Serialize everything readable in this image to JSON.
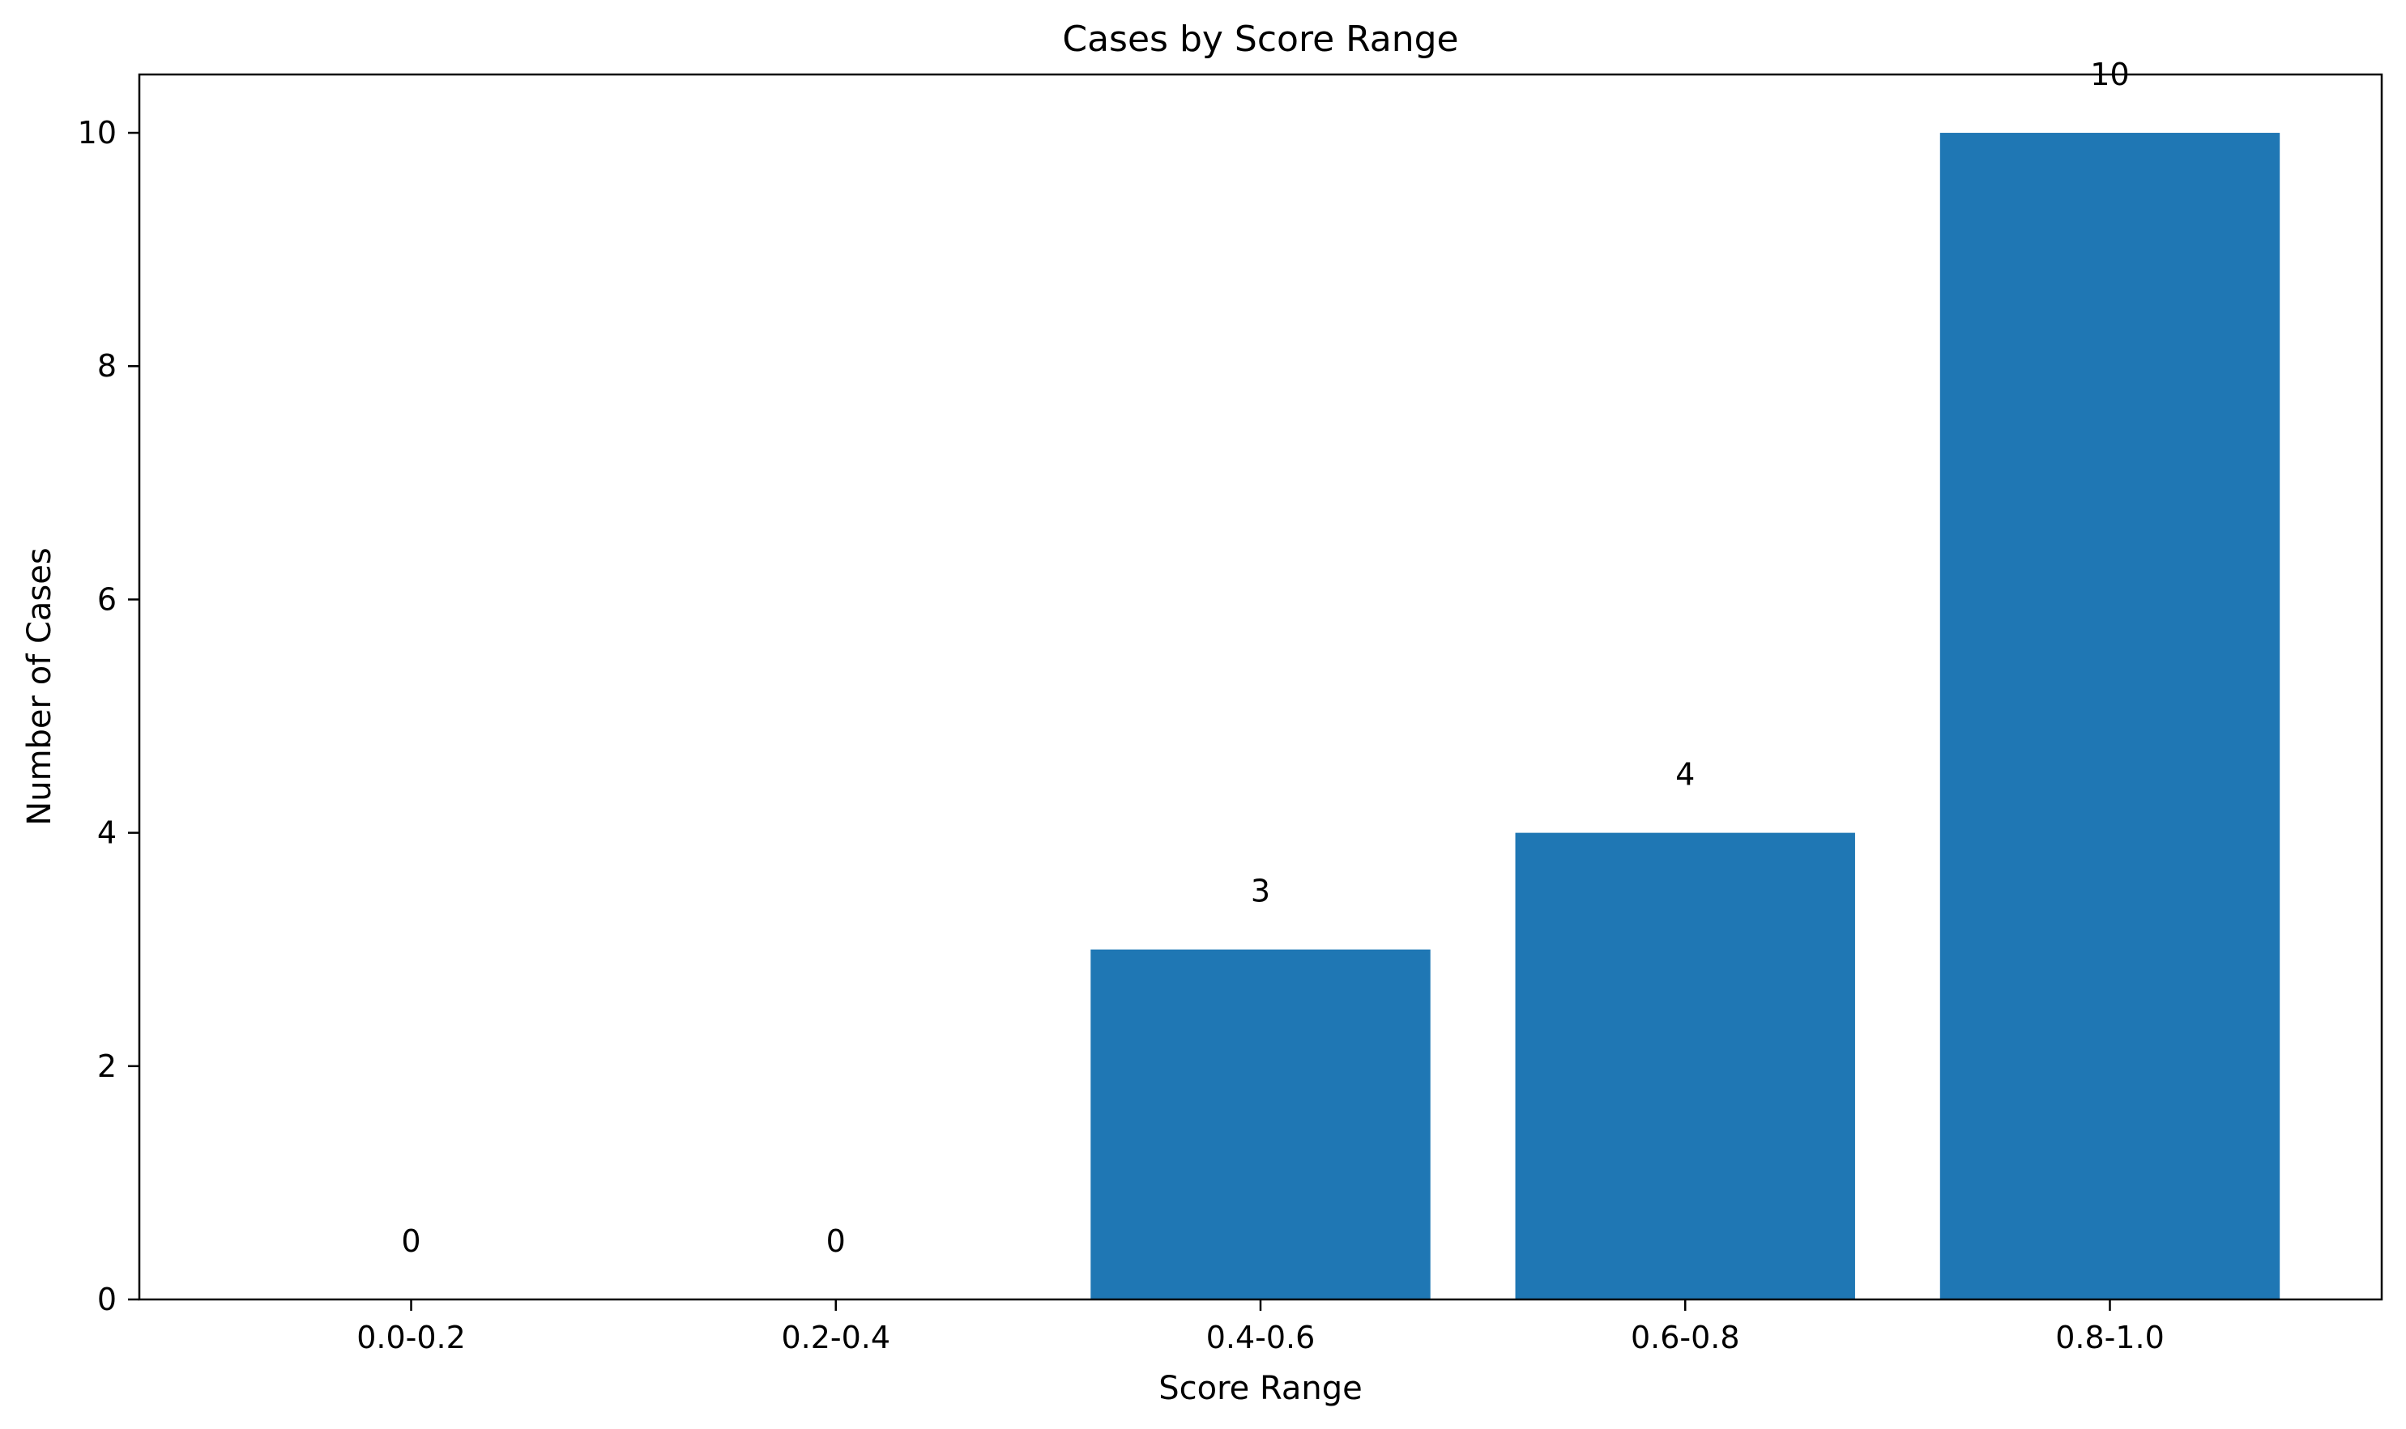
{
  "chart_data": {
    "type": "bar",
    "title": "Cases by Score Range",
    "xlabel": "Score Range",
    "ylabel": "Number of Cases",
    "categories": [
      "0.0-0.2",
      "0.2-0.4",
      "0.4-0.6",
      "0.6-0.8",
      "0.8-1.0"
    ],
    "values": [
      0,
      0,
      3,
      4,
      10
    ],
    "data_labels": [
      "0",
      "0",
      "3",
      "4",
      "10"
    ],
    "ylim": [
      0,
      10.5
    ],
    "yticks": [
      0,
      2,
      4,
      6,
      8,
      10
    ],
    "ytick_labels": [
      "0",
      "2",
      "4",
      "6",
      "8",
      "10"
    ],
    "grid": false,
    "bar_color": "#1f77b4"
  }
}
